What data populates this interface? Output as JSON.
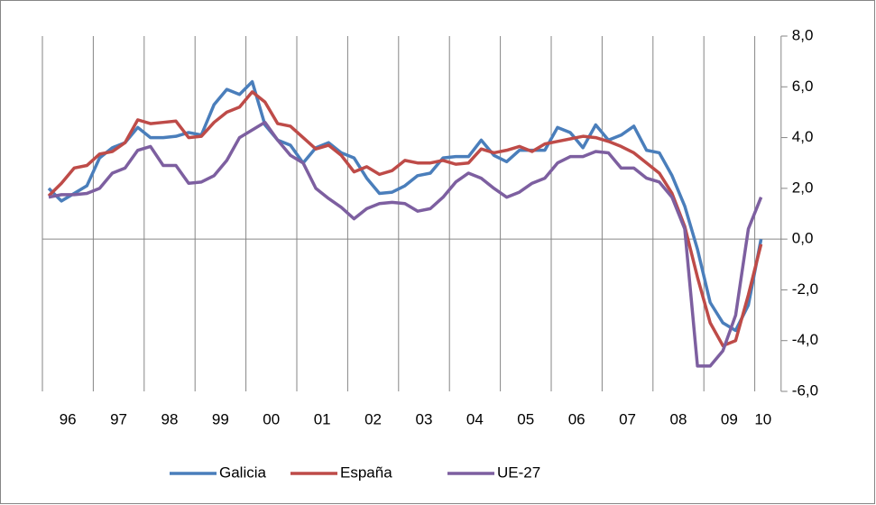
{
  "chart_data": {
    "type": "line",
    "categories": [
      "96",
      null,
      null,
      null,
      "97",
      null,
      null,
      null,
      "98",
      null,
      null,
      null,
      "99",
      null,
      null,
      null,
      "00",
      null,
      null,
      null,
      "01",
      null,
      null,
      null,
      "02",
      null,
      null,
      null,
      "03",
      null,
      null,
      null,
      "04",
      null,
      null,
      null,
      "05",
      null,
      null,
      null,
      "06",
      null,
      null,
      null,
      "07",
      null,
      null,
      null,
      "08",
      null,
      null,
      null,
      "09",
      null,
      null,
      null,
      "10"
    ],
    "series": [
      {
        "name": "Galicia",
        "color": "#4a7ebb",
        "values": [
          2.0,
          1.5,
          1.8,
          2.1,
          3.2,
          3.6,
          3.8,
          4.4,
          4.0,
          4.0,
          4.05,
          4.2,
          4.1,
          5.3,
          5.9,
          5.7,
          6.2,
          4.5,
          3.9,
          3.7,
          3.0,
          3.6,
          3.8,
          3.4,
          3.2,
          2.4,
          1.8,
          1.85,
          2.1,
          2.5,
          2.6,
          3.2,
          3.25,
          3.25,
          3.9,
          3.3,
          3.05,
          3.5,
          3.5,
          3.5,
          4.4,
          4.2,
          3.6,
          4.5,
          3.9,
          4.1,
          4.45,
          3.5,
          3.4,
          2.5,
          1.3,
          -0.4,
          -2.5,
          -3.3,
          -3.6,
          -2.6,
          0.0
        ]
      },
      {
        "name": "España",
        "color": "#be4b48",
        "values": [
          1.7,
          2.2,
          2.8,
          2.9,
          3.35,
          3.45,
          3.8,
          4.7,
          4.55,
          4.6,
          4.65,
          4.0,
          4.05,
          4.6,
          5.0,
          5.2,
          5.8,
          5.4,
          4.55,
          4.45,
          4.0,
          3.55,
          3.7,
          3.3,
          2.65,
          2.85,
          2.55,
          2.7,
          3.1,
          3.0,
          3.0,
          3.1,
          2.95,
          3.0,
          3.55,
          3.4,
          3.5,
          3.65,
          3.45,
          3.75,
          3.85,
          3.95,
          4.05,
          4.0,
          3.85,
          3.65,
          3.4,
          3.0,
          2.6,
          1.8,
          0.5,
          -1.5,
          -3.3,
          -4.2,
          -4.0,
          -2.2,
          -0.2
        ]
      },
      {
        "name": "UE-27",
        "color": "#7d5fa0",
        "values": [
          1.65,
          1.75,
          1.75,
          1.8,
          2.0,
          2.6,
          2.8,
          3.5,
          3.65,
          2.9,
          2.9,
          2.2,
          2.25,
          2.5,
          3.1,
          4.0,
          4.3,
          4.6,
          3.9,
          3.3,
          3.0,
          2.0,
          1.6,
          1.25,
          0.8,
          1.2,
          1.4,
          1.45,
          1.4,
          1.1,
          1.2,
          1.65,
          2.25,
          2.6,
          2.4,
          2.0,
          1.65,
          1.85,
          2.2,
          2.4,
          3.0,
          3.25,
          3.25,
          3.45,
          3.4,
          2.8,
          2.8,
          2.4,
          2.25,
          1.65,
          0.4,
          -5.0,
          -5.0,
          -4.4,
          -3.0,
          0.4,
          1.65
        ]
      }
    ],
    "ylim": [
      -6,
      8
    ],
    "yticks": [
      {
        "value": -6,
        "label": "-6,0"
      },
      {
        "value": -4,
        "label": "-4,0"
      },
      {
        "value": -2,
        "label": "-2,0"
      },
      {
        "value": 0,
        "label": "0,0"
      },
      {
        "value": 2,
        "label": "2,0"
      },
      {
        "value": 4,
        "label": "4,0"
      },
      {
        "value": 6,
        "label": "6,0"
      },
      {
        "value": 8,
        "label": "8,0"
      }
    ],
    "y_axis_side": "right",
    "legend": "bottom"
  }
}
